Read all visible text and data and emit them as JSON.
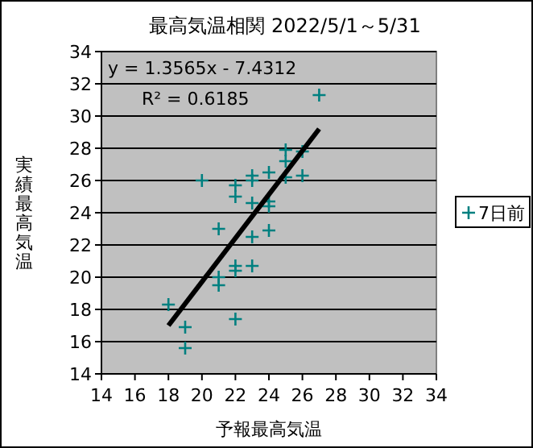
{
  "chart_data": {
    "type": "scatter",
    "title": "最高気温相関 2022/5/1～5/31",
    "xlabel": "予報最高気温",
    "ylabel": "実績最高気温",
    "annotations": [
      "y = 1.3565x - 7.4312",
      "R² = 0.6185"
    ],
    "xlim": [
      14,
      34
    ],
    "ylim": [
      14,
      34
    ],
    "xticks": [
      14,
      16,
      18,
      20,
      22,
      24,
      26,
      28,
      30,
      32,
      34
    ],
    "yticks": [
      14,
      16,
      18,
      20,
      22,
      24,
      26,
      28,
      30,
      32,
      34
    ],
    "grid": "y",
    "legend": "right",
    "marker": "cross",
    "series": [
      {
        "name": "7日前",
        "color": "#008080",
        "x": [
          18,
          19,
          19,
          20,
          21,
          21,
          21,
          22,
          22,
          22,
          22,
          22,
          23,
          23,
          23,
          23,
          23,
          24,
          24,
          24,
          24,
          25,
          25,
          25,
          26,
          26,
          27
        ],
        "values": [
          18.3,
          16.9,
          15.6,
          26.0,
          23.0,
          20.0,
          19.5,
          25.7,
          25.0,
          20.7,
          20.4,
          17.4,
          26.3,
          26.0,
          24.6,
          22.5,
          20.7,
          26.5,
          24.7,
          24.4,
          22.9,
          27.9,
          27.2,
          26.2,
          27.8,
          26.3,
          31.3
        ]
      },
      {
        "type": "line",
        "color": "#000000",
        "marker": "none",
        "x": [
          18,
          27
        ],
        "values": [
          17.0,
          29.2
        ]
      }
    ]
  }
}
